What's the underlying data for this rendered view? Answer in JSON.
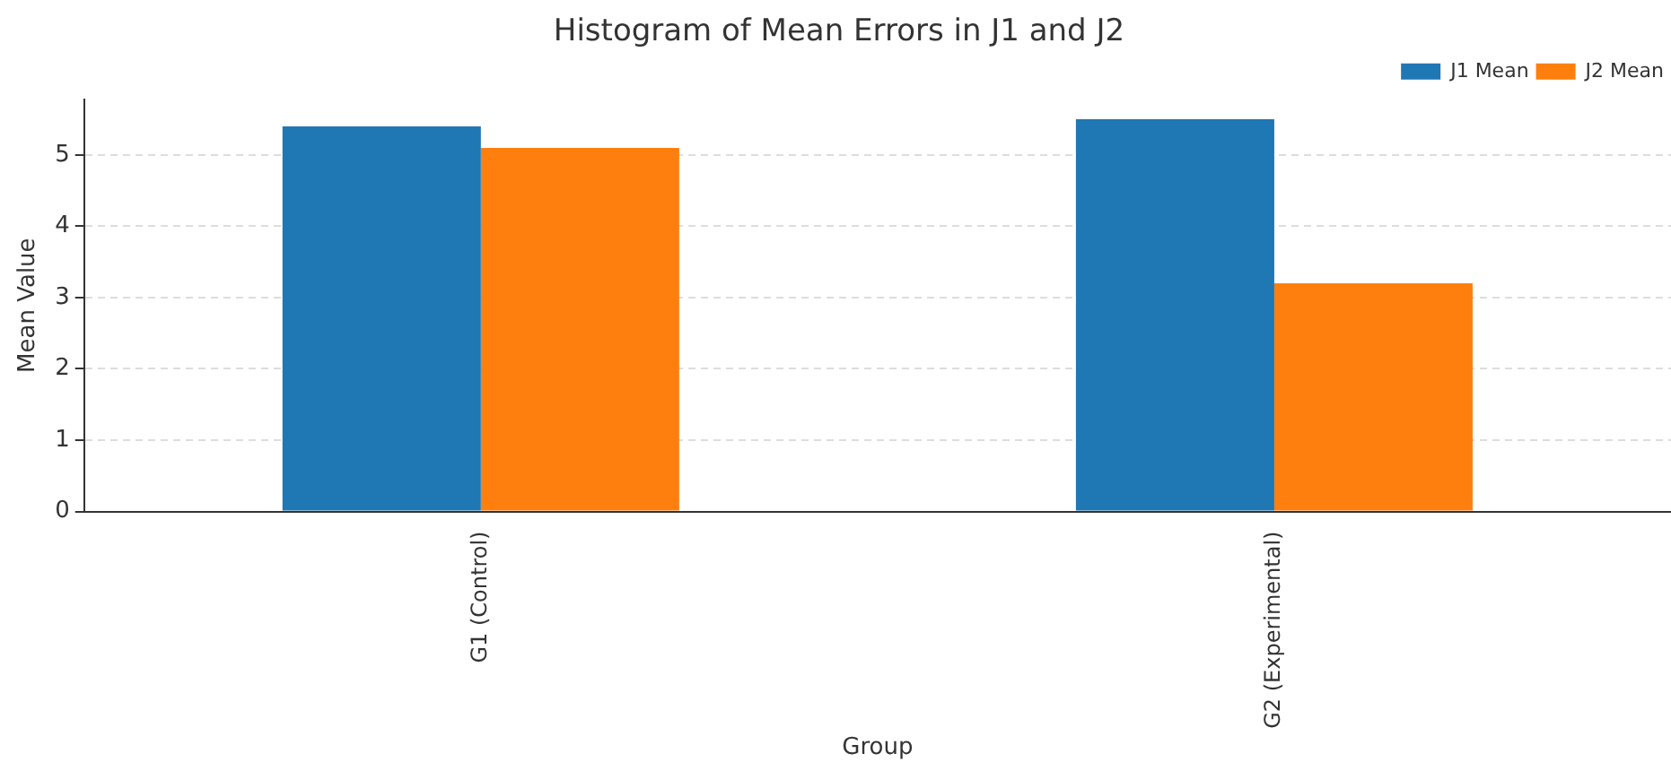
{
  "chart_data": {
    "type": "bar",
    "title": "Histogram of Mean Errors in J1 and J2",
    "xlabel": "Group",
    "ylabel": "Mean Value",
    "categories": [
      "G1 (Control)",
      "G2 (Experimental)"
    ],
    "series": [
      {
        "name": "J1 Mean",
        "color": "#1f77b4",
        "values": [
          5.4,
          5.5
        ]
      },
      {
        "name": "J2 Mean",
        "color": "#ff7f0e",
        "values": [
          5.1,
          3.2
        ]
      }
    ],
    "ylim": [
      0,
      5.78
    ],
    "yticks": [
      0,
      1,
      2,
      3,
      4,
      5
    ],
    "grid": "y",
    "legend": "top right"
  }
}
